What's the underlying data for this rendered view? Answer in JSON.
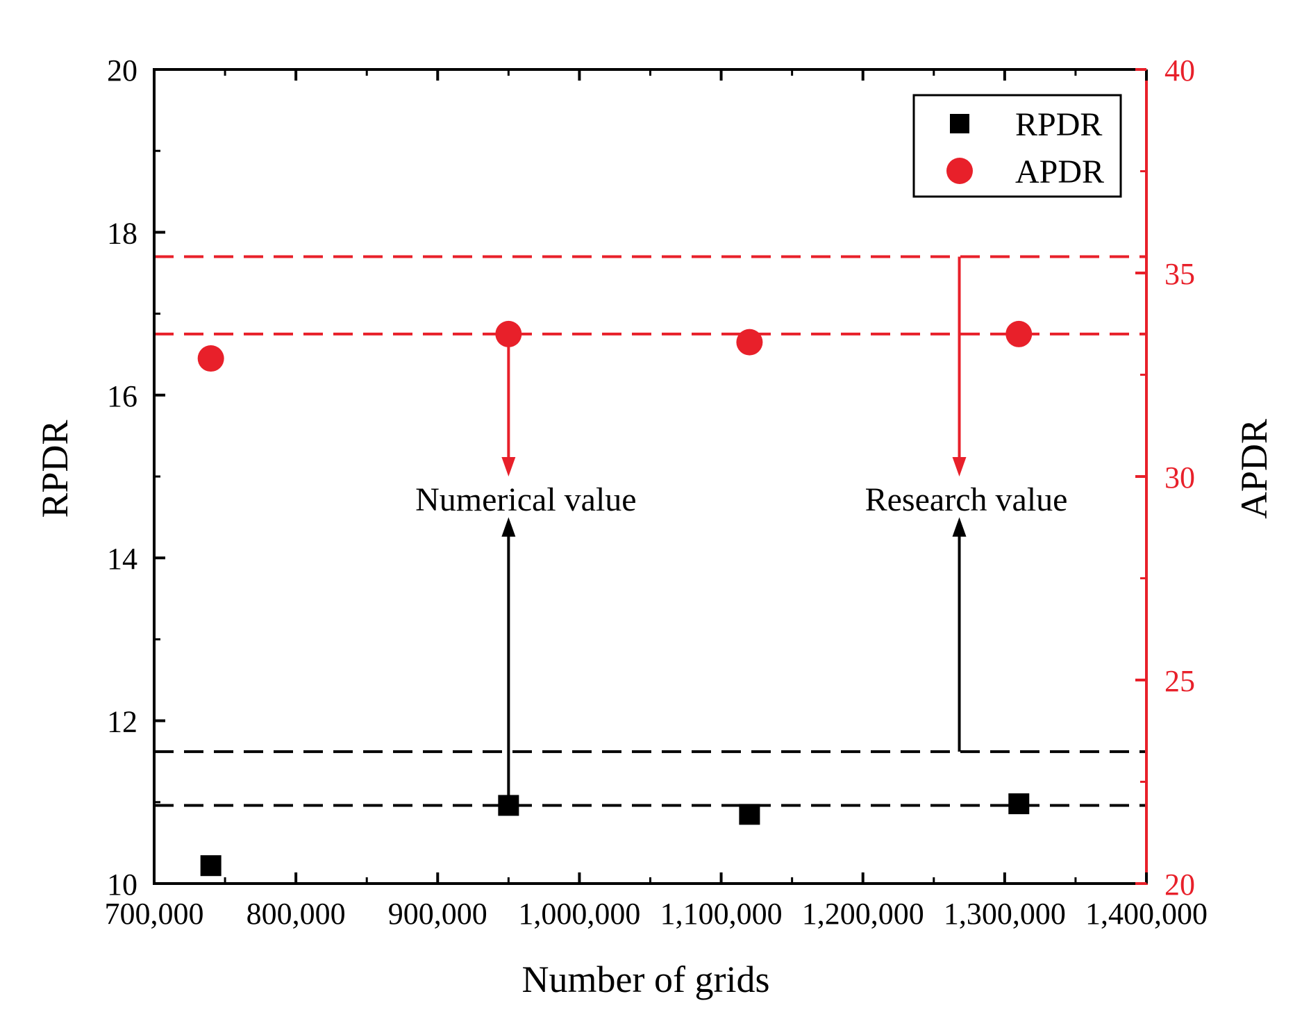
{
  "chart_data": {
    "type": "scatter",
    "title": "",
    "xlabel": "Number of grids",
    "ylabel": "RPDR",
    "y2label": "APDR",
    "xlim": [
      700000,
      1400000
    ],
    "ylim": [
      10,
      20
    ],
    "y2lim": [
      20,
      40
    ],
    "x_ticks": [
      700000,
      800000,
      900000,
      1000000,
      1100000,
      1200000,
      1300000,
      1400000
    ],
    "x_tick_labels": [
      "700,000",
      "800,000",
      "900,000",
      "1,000,000",
      "1,100,000",
      "1,200,000",
      "1,300,000",
      "1,400,000"
    ],
    "y_ticks": [
      10,
      12,
      14,
      16,
      18,
      20
    ],
    "y_tick_labels": [
      "10",
      "12",
      "14",
      "16",
      "18",
      "20"
    ],
    "y2_ticks": [
      20,
      25,
      30,
      35,
      40
    ],
    "y2_tick_labels": [
      "20",
      "25",
      "30",
      "35",
      "40"
    ],
    "legend_position": "top-right",
    "series": [
      {
        "name": "RPDR",
        "axis": "left",
        "marker": "square",
        "color": "#000000",
        "x": [
          740000,
          950000,
          1120000,
          1310000
        ],
        "values": [
          10.22,
          10.96,
          10.85,
          10.98
        ]
      },
      {
        "name": "APDR",
        "axis": "right",
        "marker": "circle",
        "color": "#e8202a",
        "x": [
          740000,
          950000,
          1120000,
          1310000
        ],
        "values": [
          32.9,
          33.5,
          33.3,
          33.5
        ]
      }
    ],
    "reference_lines": [
      {
        "id": "rpdr-numerical-line",
        "axis": "left",
        "value": 10.96,
        "color": "#000000"
      },
      {
        "id": "rpdr-research-line",
        "axis": "left",
        "value": 11.62,
        "color": "#000000"
      },
      {
        "id": "apdr-numerical-line",
        "axis": "right",
        "value": 33.5,
        "color": "#e8202a"
      },
      {
        "id": "apdr-research-line",
        "axis": "right",
        "value": 35.4,
        "color": "#e8202a"
      }
    ],
    "annotations": [
      {
        "id": "numerical",
        "text": "Numerical value",
        "x": 950000,
        "black_arrow_from": 10.96,
        "black_arrow_to": 14.5,
        "red_arrow_from": 33.5,
        "red_arrow_to": 30.0
      },
      {
        "id": "research",
        "text": "Research value",
        "x": 1268000,
        "black_arrow_from": 11.62,
        "black_arrow_to": 14.5,
        "red_arrow_from": 35.4,
        "red_arrow_to": 30.0
      }
    ],
    "colors": {
      "left_axis": "#000000",
      "right_axis": "#e8202a"
    }
  }
}
